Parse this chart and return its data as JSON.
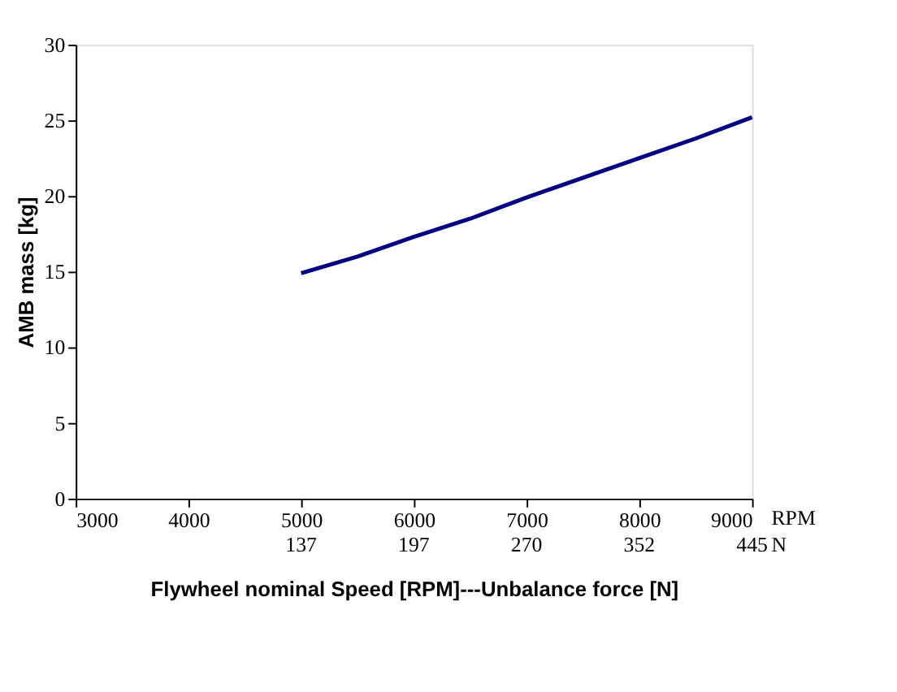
{
  "chart_data": {
    "type": "line",
    "xlabel": "Flywheel nominal Speed [RPM]---Unbalance  force [N]",
    "ylabel": "AMB mass [kg]",
    "x": [
      5000,
      5500,
      6000,
      6500,
      7000,
      7500,
      8000,
      8500,
      9000
    ],
    "series": [
      {
        "color": "#000080",
        "values": [
          14.9,
          16.0,
          17.3,
          18.5,
          19.9,
          21.2,
          22.5,
          23.8,
          25.2
        ]
      }
    ],
    "xlim": [
      3000,
      9000
    ],
    "xticks": [
      3000,
      4000,
      5000,
      6000,
      7000,
      8000,
      9000
    ],
    "ylim": [
      0,
      30
    ],
    "yticks": [
      0,
      5,
      10,
      15,
      20,
      25,
      30
    ],
    "annotations": [
      "RPM",
      "N",
      "137",
      "197",
      "270",
      "352",
      "445"
    ],
    "grid": false,
    "marker": "none",
    "line_style": "solid"
  }
}
